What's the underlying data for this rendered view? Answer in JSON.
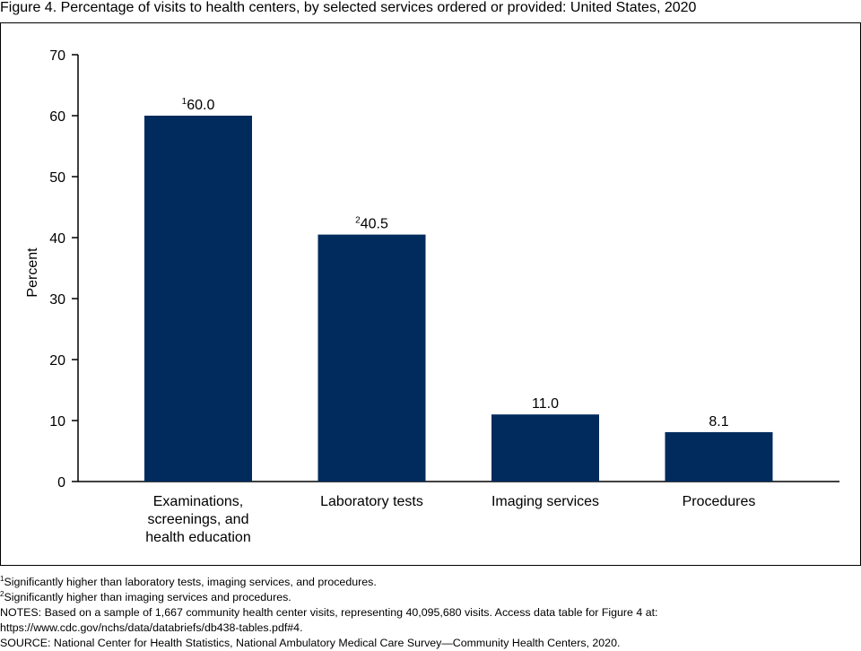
{
  "figure_title": "Figure 4. Percentage of visits to health centers, by selected services ordered or provided: United States, 2020",
  "colors": {
    "bar": "#002b5c"
  },
  "chart_data": {
    "type": "bar",
    "categories": [
      [
        "Examinations,",
        "screenings, and",
        "health education"
      ],
      [
        "Laboratory tests"
      ],
      [
        "Imaging services"
      ],
      [
        "Procedures"
      ]
    ],
    "values": [
      60.0,
      40.5,
      11.0,
      8.1
    ],
    "value_labels": [
      "60.0",
      "40.5",
      "11.0",
      "8.1"
    ],
    "value_label_superscripts": [
      "1",
      "2",
      "",
      ""
    ],
    "ylabel": "Percent",
    "xlabel": "",
    "ylim": [
      0,
      70
    ],
    "yticks": [
      0,
      10,
      20,
      30,
      40,
      50,
      60,
      70
    ],
    "grid": false
  },
  "notes": {
    "footnote1_mark": "1",
    "footnote1_text": "Significantly higher than laboratory tests, imaging services, and procedures.",
    "footnote2_mark": "2",
    "footnote2_text": "Significantly higher than imaging services and procedures.",
    "notes_line1": "NOTES: Based on a sample of 1,667 community health center visits, representing 40,095,680 visits. Access data table for Figure 4 at:",
    "notes_line2": "https://www.cdc.gov/nchs/data/databriefs/db438-tables.pdf#4.",
    "source": "SOURCE: National Center for Health Statistics, National Ambulatory Medical Care Survey—Community Health Centers, 2020."
  }
}
